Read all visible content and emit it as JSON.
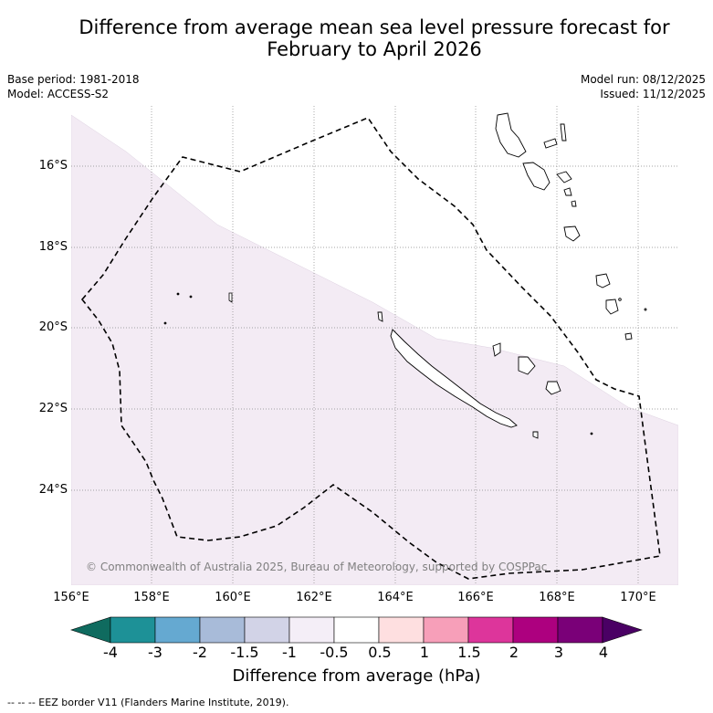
{
  "title_line1": "Difference from average mean sea level pressure forecast for",
  "title_line2": "February to April 2026",
  "meta": {
    "base_period": "Base period: 1981-2018",
    "model": "Model: ACCESS-S2",
    "model_run": "Model run: 08/12/2025",
    "issued": "Issued: 11/12/2025"
  },
  "map": {
    "lat_labels": [
      "16°S",
      "18°S",
      "20°S",
      "22°S",
      "24°S"
    ],
    "lon_labels": [
      "156°E",
      "158°E",
      "160°E",
      "162°E",
      "164°E",
      "166°E",
      "168°E",
      "170°E"
    ],
    "copyright": "© Commonwealth of Australia 2025, Bureau of Meteorology, supported by COSPPac",
    "anomaly_fill_color": "#f3ebf4",
    "shaded_category": "-1 to -0.5"
  },
  "colorbar": {
    "title": "Difference from average (hPa)",
    "labels": [
      "-4",
      "-3",
      "-2",
      "-1.5",
      "-1",
      "-0.5",
      "0.5",
      "1",
      "1.5",
      "2",
      "3",
      "4"
    ],
    "colors": [
      "#0f6b5f",
      "#1d9197",
      "#65a9d1",
      "#a8bbd9",
      "#d2d3e7",
      "#f4eef7",
      "#ffffff",
      "#fedfe0",
      "#f79fb9",
      "#dd359b",
      "#ad007f",
      "#7a0078",
      "#4a0064"
    ]
  },
  "footnote": "-- -- -- EEZ border V11 (Flanders Marine Institute, 2019)."
}
